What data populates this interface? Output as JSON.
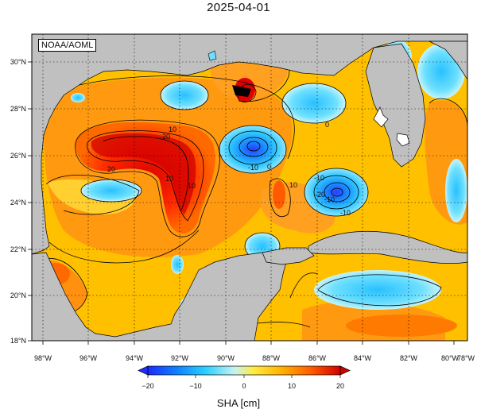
{
  "title": "2025-04-01",
  "credit": "NOAA/AOML",
  "map": {
    "lon_ticks": [
      "98°W",
      "96°W",
      "94°W",
      "92°W",
      "90°W",
      "88°W",
      "86°W",
      "84°W",
      "82°W",
      "80°W",
      "78°W"
    ],
    "lat_ticks": [
      "30°N",
      "28°N",
      "26°N",
      "24°N",
      "22°N",
      "20°N",
      "18°N"
    ],
    "extent": {
      "lon": [
        -98.5,
        -78
      ],
      "lat": [
        18,
        31
      ]
    },
    "contour_labels": [
      "10",
      "20",
      "20",
      "10",
      "-10",
      "0",
      "-10",
      "10",
      "-20",
      "-10",
      "-10",
      "0",
      "10"
    ],
    "land_color": "#c0c0c0",
    "ocean_scale": "red-orange-yellow-cyan-blue"
  },
  "colorbar": {
    "label": "SHA [cm]",
    "ticks": [
      "−20",
      "−10",
      "0",
      "10",
      "20"
    ],
    "range": [
      -20,
      20
    ],
    "colors": [
      "#1e3cff",
      "#15a0ff",
      "#7fe6ff",
      "#d8f0f0",
      "#ffe200",
      "#ffa800",
      "#ff6a00",
      "#ff2a00",
      "#c80000"
    ]
  }
}
